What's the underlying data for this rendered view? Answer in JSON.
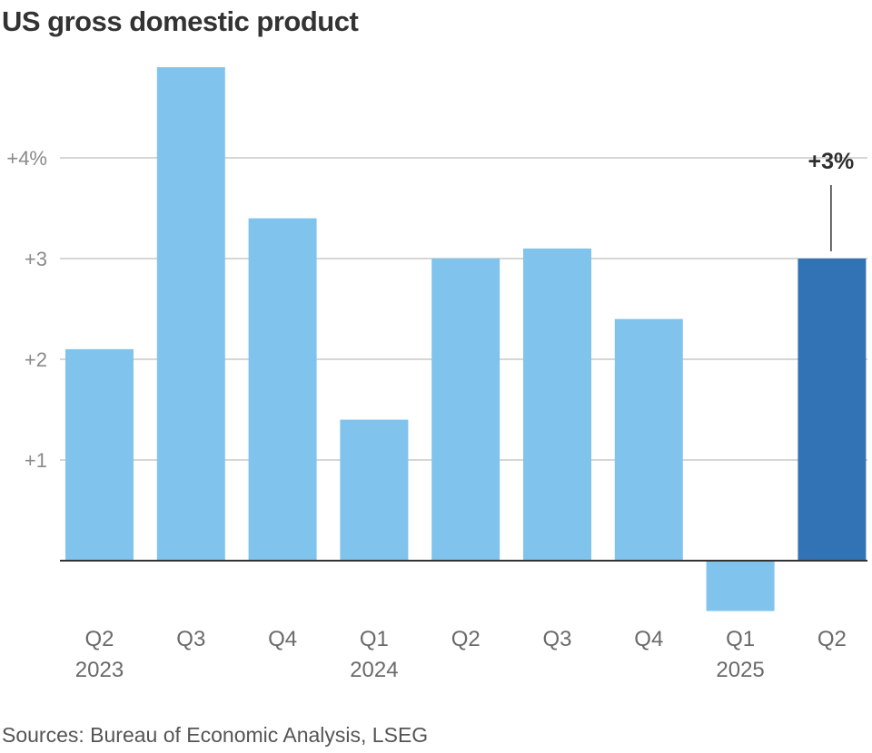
{
  "title": "US gross domestic product",
  "source": "Sources: Bureau of Economic Analysis, LSEG",
  "colors": {
    "bar": "#80c4ed",
    "highlight": "#3273b6",
    "grid": "#c8c8c8",
    "axis": "#333333"
  },
  "chart_data": {
    "type": "bar",
    "title": "US gross domestic product",
    "xlabel": "",
    "ylabel": "",
    "ylim": [
      -0.6,
      4.9
    ],
    "grid": true,
    "yticks": [
      {
        "value": 1,
        "label": "+1"
      },
      {
        "value": 2,
        "label": "+2"
      },
      {
        "value": 3,
        "label": "+3"
      },
      {
        "value": 4,
        "label": "+4%"
      }
    ],
    "categories": [
      {
        "quarter": "Q2",
        "year": "2023"
      },
      {
        "quarter": "Q3",
        "year": ""
      },
      {
        "quarter": "Q4",
        "year": ""
      },
      {
        "quarter": "Q1",
        "year": "2024"
      },
      {
        "quarter": "Q2",
        "year": ""
      },
      {
        "quarter": "Q3",
        "year": ""
      },
      {
        "quarter": "Q4",
        "year": ""
      },
      {
        "quarter": "Q1",
        "year": "2025"
      },
      {
        "quarter": "Q2",
        "year": ""
      }
    ],
    "values": [
      2.1,
      4.9,
      3.4,
      1.4,
      3.0,
      3.1,
      2.4,
      -0.5,
      3.0
    ],
    "highlight_index": 8,
    "annotation": {
      "index": 8,
      "text": "+3%"
    }
  }
}
